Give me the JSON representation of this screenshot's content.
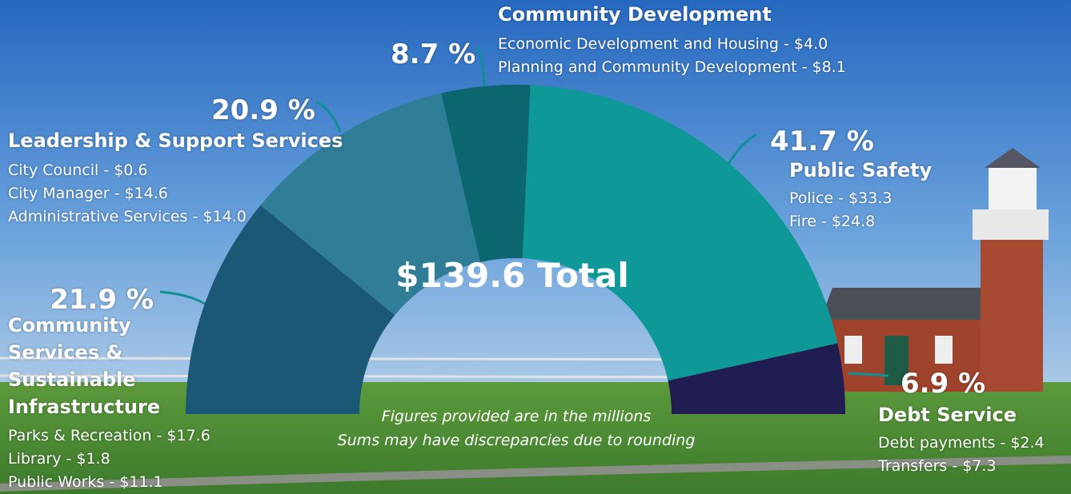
{
  "chart_data": {
    "type": "semi-donut",
    "total_label": "$139.6 Total",
    "notes": [
      "Figures provided are in the millions",
      "Sums may have discrepancies due to rounding"
    ],
    "categories": [
      "Community Services & Sustainable Infrastructure",
      "Leadership & Support Services",
      "Community Development",
      "Public Safety",
      "Debt Service"
    ],
    "values": [
      21.9,
      20.9,
      8.7,
      41.7,
      6.9
    ],
    "value_labels": [
      "21.9 %",
      "20.9 %",
      "8.7 %",
      "41.7 %",
      "6.9 %"
    ],
    "colors": [
      "#1a5876",
      "#2f7d96",
      "#0b6670",
      "#0f9898",
      "#201d52"
    ],
    "details": [
      [
        "Parks & Recreation - $17.6",
        "Library - $1.8",
        "Public Works - $11.1"
      ],
      [
        "City Council - $0.6",
        "City Manager - $14.6",
        "Administrative Services - $14.0"
      ],
      [
        "Economic Development and Housing - $4.0",
        "Planning and Community Development - $8.1"
      ],
      [
        "Police - $33.3",
        "Fire - $24.8"
      ],
      [
        "Debt payments - $2.4",
        "Transfers - $7.3"
      ]
    ]
  }
}
